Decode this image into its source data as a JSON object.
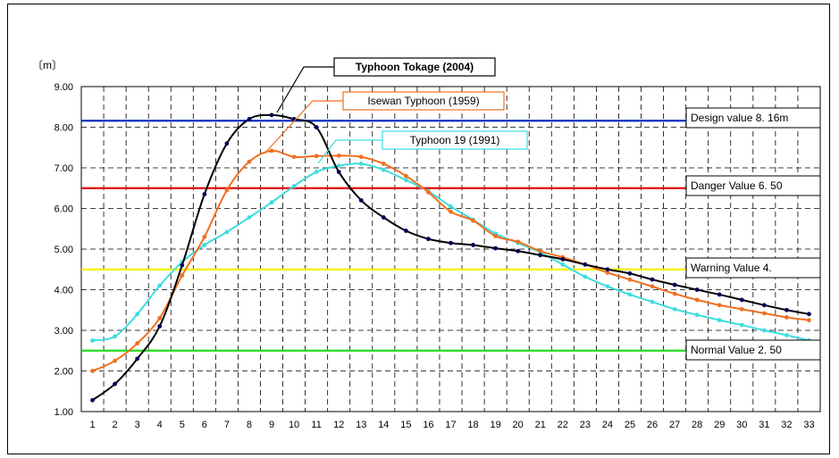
{
  "chart_data": {
    "type": "line",
    "unit_label": "〔m〕",
    "x": [
      1,
      2,
      3,
      4,
      5,
      6,
      7,
      8,
      9,
      10,
      11,
      12,
      13,
      14,
      15,
      16,
      17,
      18,
      19,
      20,
      21,
      22,
      23,
      24,
      25,
      26,
      27,
      28,
      29,
      30,
      31,
      32,
      33
    ],
    "ylim": [
      1,
      9
    ],
    "yticks": [
      "1.00",
      "2.00",
      "3.00",
      "4.00",
      "5.00",
      "6.00",
      "7.00",
      "8.00",
      "9.00"
    ],
    "grid": "dashed",
    "series": [
      {
        "name": "Typhoon Tokage (2004)",
        "color": "#000000",
        "marker_color": "#00005a",
        "values": [
          1.28,
          1.68,
          2.3,
          3.1,
          4.6,
          6.35,
          7.6,
          8.2,
          8.3,
          8.2,
          8.0,
          6.9,
          6.2,
          5.78,
          5.45,
          5.25,
          5.15,
          5.1,
          5.02,
          4.95,
          4.85,
          4.75,
          4.62,
          4.5,
          4.4,
          4.25,
          4.12,
          4.0,
          3.88,
          3.75,
          3.62,
          3.5,
          3.4
        ]
      },
      {
        "name": "Isewan Typhoon (1959)",
        "color": "#f07020",
        "values": [
          2.0,
          2.25,
          2.68,
          3.3,
          4.35,
          5.3,
          6.45,
          7.15,
          7.42,
          7.27,
          7.29,
          7.3,
          7.27,
          7.1,
          6.8,
          6.4,
          5.92,
          5.7,
          5.32,
          5.18,
          4.95,
          4.8,
          4.62,
          4.42,
          4.25,
          4.08,
          3.9,
          3.75,
          3.62,
          3.52,
          3.42,
          3.32,
          3.25
        ]
      },
      {
        "name": "Typhoon 19 (1991)",
        "color": "#3ddde0",
        "values": [
          2.75,
          2.85,
          3.4,
          4.1,
          4.68,
          5.1,
          5.42,
          5.78,
          6.15,
          6.55,
          6.9,
          7.05,
          7.1,
          6.95,
          6.7,
          6.42,
          6.05,
          5.72,
          5.38,
          5.15,
          4.92,
          4.62,
          4.32,
          4.08,
          3.88,
          3.7,
          3.52,
          3.38,
          3.25,
          3.13,
          3.0,
          2.88,
          2.75
        ]
      }
    ],
    "reference_lines": [
      {
        "label": "Design value 8. 16m",
        "value": 8.16,
        "color": "#0a2fc0"
      },
      {
        "label": "Danger Value  6. 50",
        "value": 6.5,
        "color": "#e01010"
      },
      {
        "label": "Warning Value  4.",
        "value": 4.5,
        "color": "#f2f200"
      },
      {
        "label": "Normal Value  2. 50",
        "value": 2.5,
        "color": "#22dd22"
      }
    ]
  }
}
